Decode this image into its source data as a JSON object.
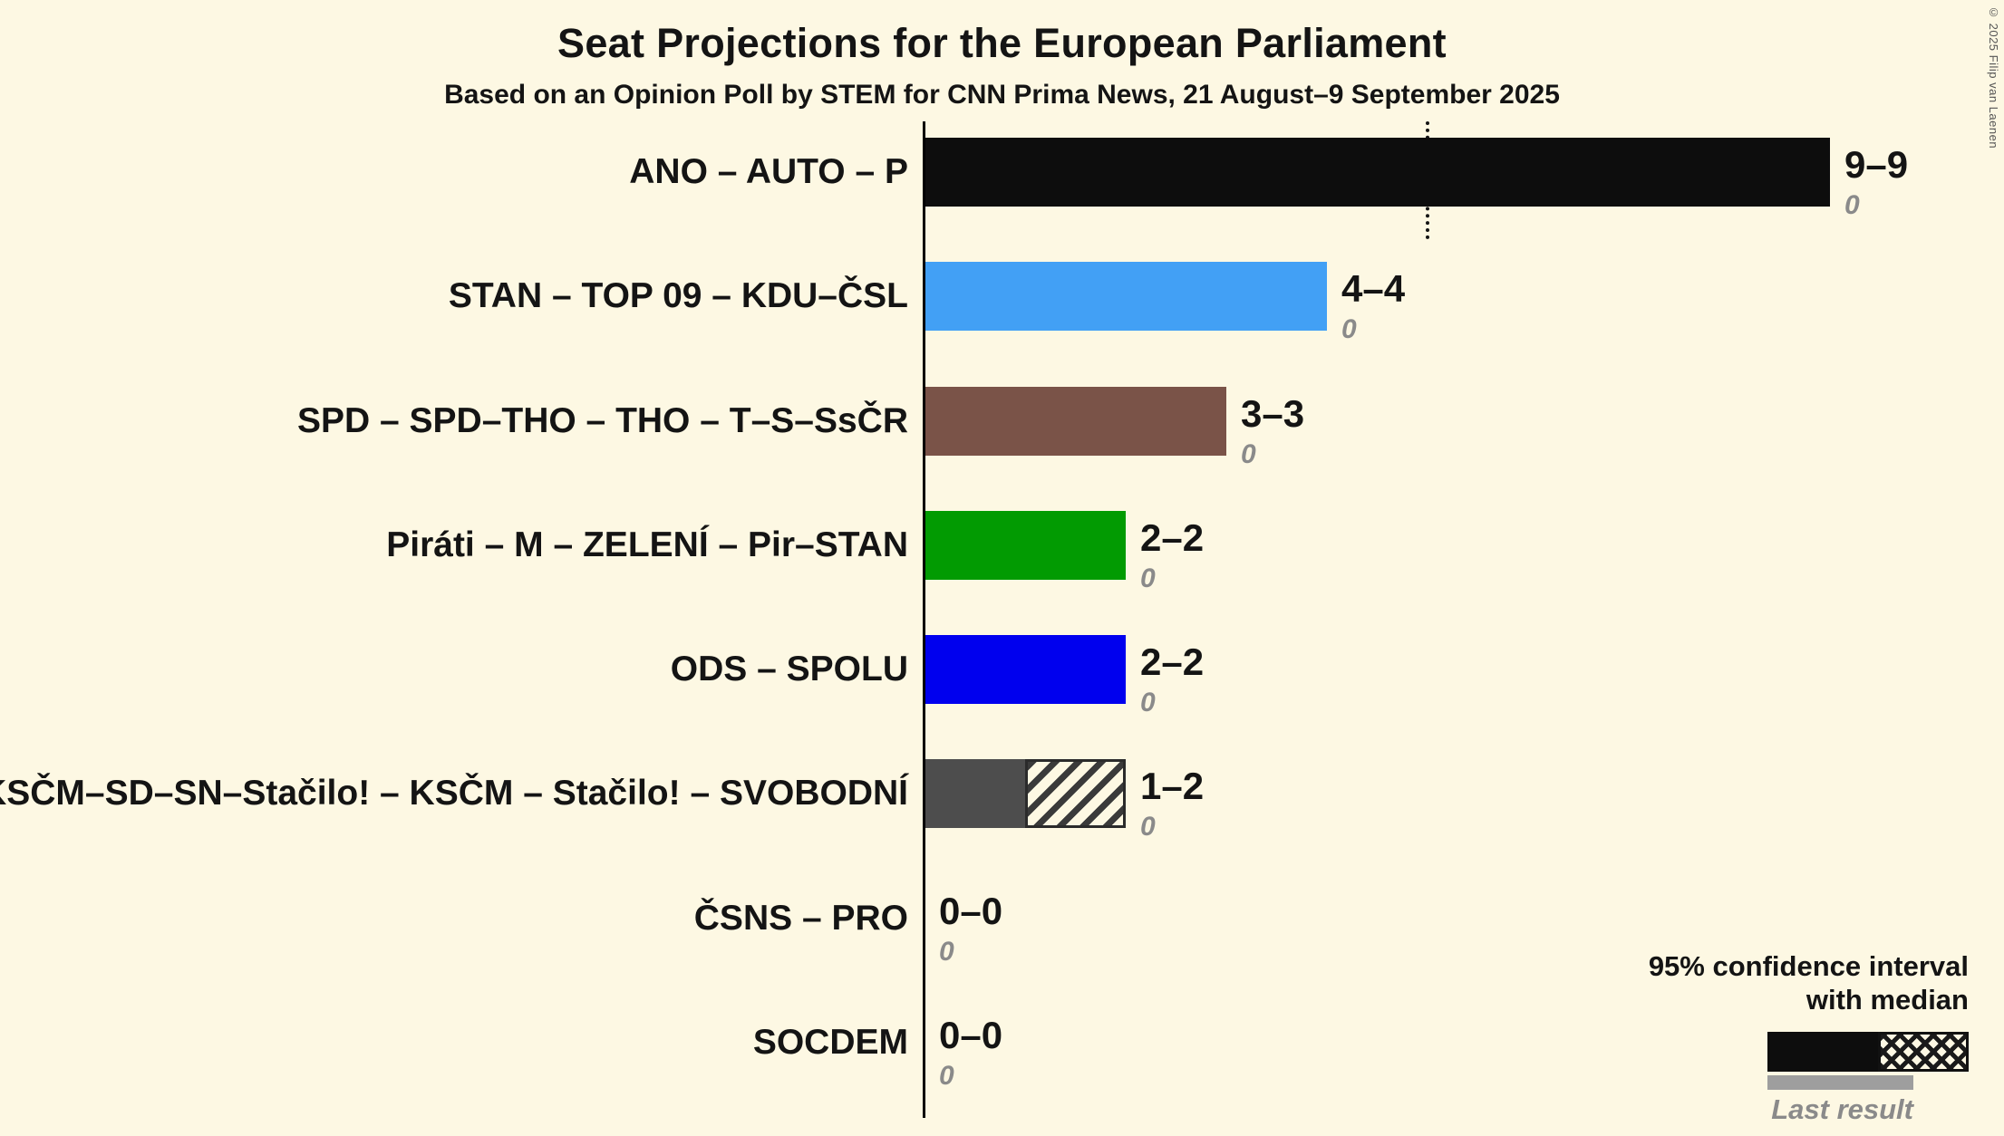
{
  "title": "Seat Projections for the European Parliament",
  "subtitle": "Based on an Opinion Poll by STEM for CNN Prima News, 21 August–9 September 2025",
  "copyright": "© 2025 Filip van Laenen",
  "legend": {
    "ci_line1": "95% confidence interval",
    "ci_line2": "with median",
    "last_result": "Last result"
  },
  "colors": {
    "background": "#FDF8E3",
    "axis": "#000000",
    "last_result_bar": "#9E9E9E",
    "secondary_value_text": "#8A8A8A"
  },
  "chart_data": {
    "type": "bar",
    "orientation": "horizontal",
    "unit": "seats",
    "x_range": [
      0,
      9
    ],
    "threshold_line_at_seats": 5,
    "grid": false,
    "legend_position": "bottom-right",
    "categories": [
      "ANO – AUTO – P",
      "STAN – TOP 09 – KDU–ČSL",
      "SPD – SPD–THO – THO – T–S–SsČR",
      "Piráti – M – ZELENÍ – Pir–STAN",
      "ODS – SPOLU",
      "KSČM–SD–SN–Stačilo! – KSČM – Stačilo! – SVOBODNÍ",
      "ČSNS – PRO",
      "SOCDEM"
    ],
    "series": [
      {
        "name": "Median seats",
        "values": [
          9,
          4,
          3,
          2,
          2,
          1,
          0,
          0
        ]
      },
      {
        "name": "95% CI high",
        "values": [
          9,
          4,
          3,
          2,
          2,
          2,
          0,
          0
        ]
      },
      {
        "name": "Last result",
        "values": [
          0,
          0,
          0,
          0,
          0,
          0,
          0,
          0
        ]
      }
    ],
    "bars": [
      {
        "label": "ANO – AUTO – P",
        "median": 9,
        "ci_low": 9,
        "ci_high": 9,
        "value_label": "9–9",
        "last_result_label": "0",
        "color": "#0D0D0D"
      },
      {
        "label": "STAN – TOP 09 – KDU–ČSL",
        "median": 4,
        "ci_low": 4,
        "ci_high": 4,
        "value_label": "4–4",
        "last_result_label": "0",
        "color": "#42A0F5"
      },
      {
        "label": "SPD – SPD–THO – THO – T–S–SsČR",
        "median": 3,
        "ci_low": 3,
        "ci_high": 3,
        "value_label": "3–3",
        "last_result_label": "0",
        "color": "#7A5348"
      },
      {
        "label": "Piráti – M – ZELENÍ – Pir–STAN",
        "median": 2,
        "ci_low": 2,
        "ci_high": 2,
        "value_label": "2–2",
        "last_result_label": "0",
        "color": "#029B02"
      },
      {
        "label": "ODS – SPOLU",
        "median": 2,
        "ci_low": 2,
        "ci_high": 2,
        "value_label": "2–2",
        "last_result_label": "0",
        "color": "#0000EE"
      },
      {
        "label": "KSČM–SD–SN–Stačilo! – KSČM – Stačilo! – SVOBODNÍ",
        "median": 1,
        "ci_low": 1,
        "ci_high": 2,
        "value_label": "1–2",
        "last_result_label": "0",
        "color": "#4D4D4D",
        "hatched": true
      },
      {
        "label": "ČSNS – PRO",
        "median": 0,
        "ci_low": 0,
        "ci_high": 0,
        "value_label": "0–0",
        "last_result_label": "0"
      },
      {
        "label": "SOCDEM",
        "median": 0,
        "ci_low": 0,
        "ci_high": 0,
        "value_label": "0–0",
        "last_result_label": "0"
      }
    ]
  }
}
